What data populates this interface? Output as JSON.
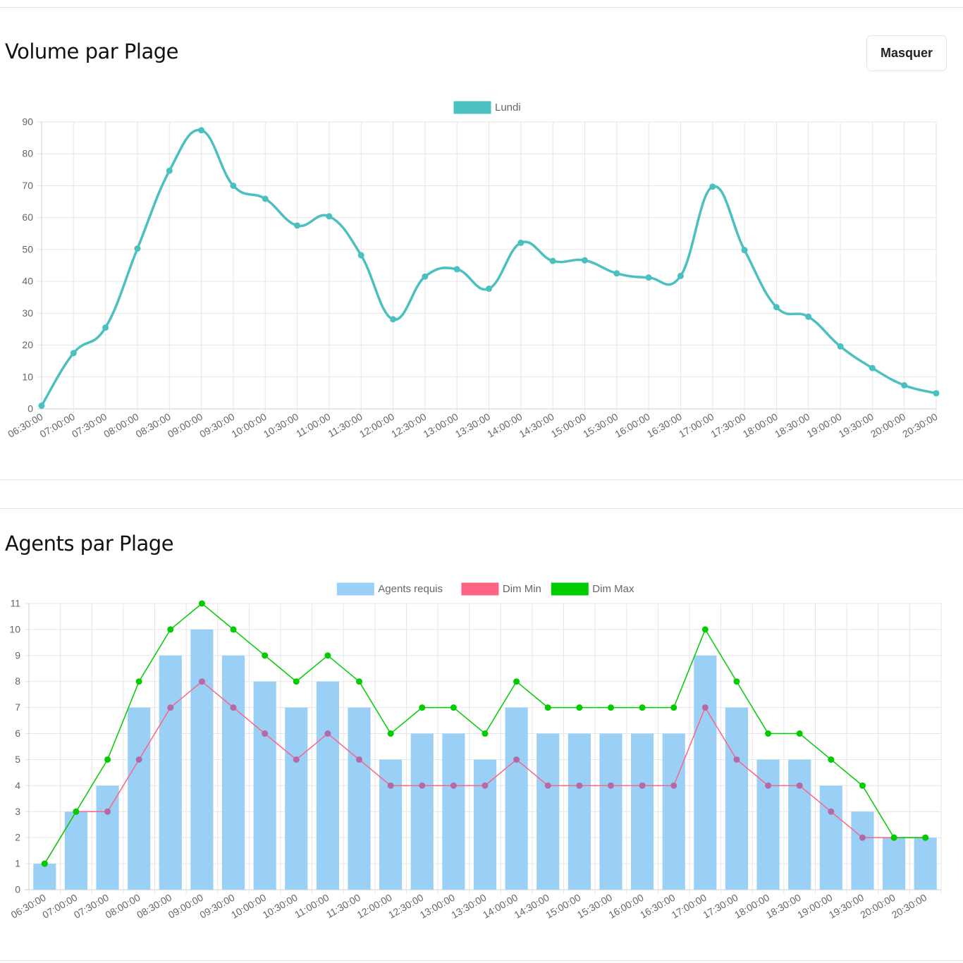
{
  "section_volume": {
    "title": "Volume par Plage",
    "hide_button_label": "Masquer"
  },
  "section_agents": {
    "title": "Agents par Plage"
  },
  "chart_data": [
    {
      "type": "line",
      "x": [
        "06:30:00",
        "07:00:00",
        "07:30:00",
        "08:00:00",
        "08:30:00",
        "09:00:00",
        "09:30:00",
        "10:00:00",
        "10:30:00",
        "11:00:00",
        "11:30:00",
        "12:00:00",
        "12:30:00",
        "13:00:00",
        "13:30:00",
        "14:00:00",
        "14:30:00",
        "15:00:00",
        "15:30:00",
        "16:00:00",
        "16:30:00",
        "17:00:00",
        "17:30:00",
        "18:00:00",
        "18:30:00",
        "19:00:00",
        "19:30:00",
        "20:00:00",
        "20:30:00"
      ],
      "series": [
        {
          "name": "Lundi",
          "color": "#4bc0c0",
          "values": [
            1,
            17.5,
            25.5,
            50.3,
            74.7,
            87.4,
            70,
            65.9,
            57.5,
            60.4,
            48.2,
            28.1,
            41.5,
            43.8,
            37.7,
            52.1,
            46.4,
            46.6,
            42.5,
            41.2,
            41.7,
            69.7,
            49.8,
            31.9,
            28.9,
            19.6,
            12.8,
            7.4,
            4.9
          ]
        }
      ],
      "ylim": [
        0,
        90
      ],
      "yticks": [
        0,
        10,
        20,
        30,
        40,
        50,
        60,
        70,
        80,
        90
      ],
      "grid": true,
      "legend": "top-center"
    },
    {
      "type": "bar",
      "x": [
        "06:30:00",
        "07:00:00",
        "07:30:00",
        "08:00:00",
        "08:30:00",
        "09:00:00",
        "09:30:00",
        "10:00:00",
        "10:30:00",
        "11:00:00",
        "11:30:00",
        "12:00:00",
        "12:30:00",
        "13:00:00",
        "13:30:00",
        "14:00:00",
        "14:30:00",
        "15:00:00",
        "15:30:00",
        "16:00:00",
        "16:30:00",
        "17:00:00",
        "17:30:00",
        "18:00:00",
        "18:30:00",
        "19:00:00",
        "19:30:00",
        "20:00:00",
        "20:30:00"
      ],
      "series": [
        {
          "name": "Agents requis",
          "type": "bar",
          "color": "#9ad0f5",
          "values": [
            1,
            3,
            4,
            7,
            9,
            10,
            9,
            8,
            7,
            8,
            7,
            5,
            6,
            6,
            5,
            7,
            6,
            6,
            6,
            6,
            6,
            9,
            7,
            5,
            5,
            4,
            3,
            2,
            2
          ]
        },
        {
          "name": "Dim Min",
          "type": "line",
          "color": "#ff6384",
          "values": [
            1,
            3,
            3,
            5,
            7,
            8,
            7,
            6,
            5,
            6,
            5,
            4,
            4,
            4,
            4,
            5,
            4,
            4,
            4,
            4,
            4,
            7,
            5,
            4,
            4,
            3,
            2,
            2,
            2
          ]
        },
        {
          "name": "Dim Max",
          "type": "line",
          "color": "#00cc00",
          "values": [
            1,
            3,
            5,
            8,
            10,
            11,
            10,
            9,
            8,
            9,
            8,
            6,
            7,
            7,
            6,
            8,
            7,
            7,
            7,
            7,
            7,
            10,
            8,
            6,
            6,
            5,
            4,
            2,
            2
          ]
        }
      ],
      "ylim": [
        0,
        11
      ],
      "yticks": [
        0,
        1,
        2,
        3,
        4,
        5,
        6,
        7,
        8,
        9,
        10,
        11
      ],
      "grid": true,
      "legend": "top-center"
    }
  ]
}
